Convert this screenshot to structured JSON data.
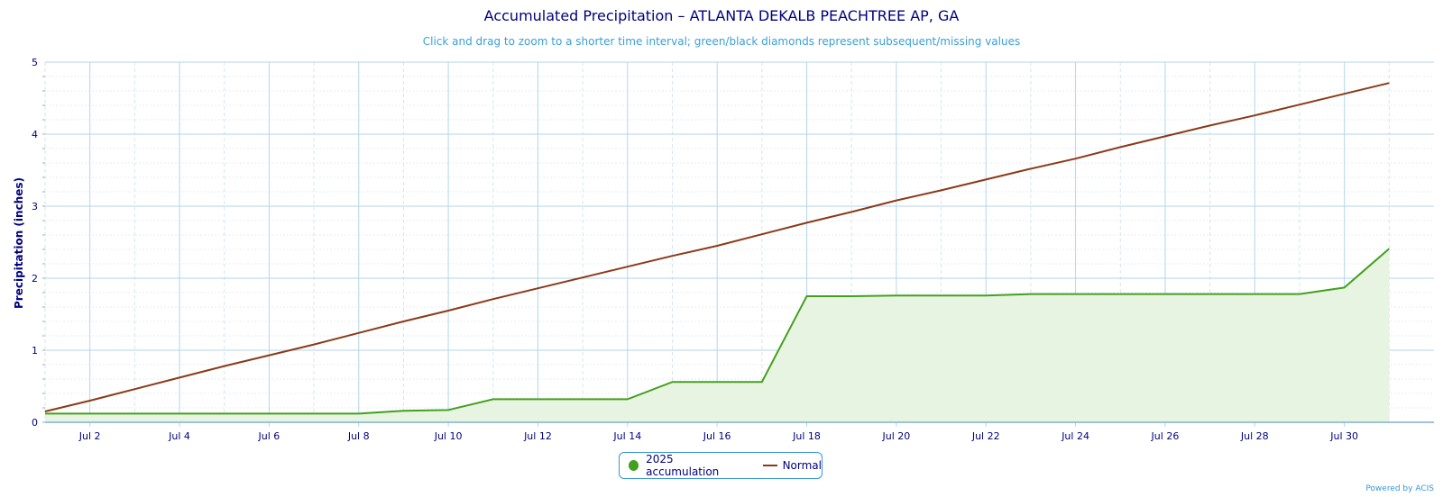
{
  "colors": {
    "title": "#000080",
    "subtitle": "#3a9fd6",
    "grid": "#b3d6ec",
    "minor_grid": "#e6eef4",
    "accumulation": "#43a01f",
    "accumulation_fill": "#e8f4e2",
    "normal": "#8b3a17",
    "axis_text": "#000080"
  },
  "chart_data": {
    "type": "area",
    "title": "Accumulated Precipitation – ATLANTA DEKALB PEACHTREE AP, GA",
    "subtitle": "Click and drag to zoom to a shorter time interval; green/black diamonds represent subsequent/missing values",
    "ylabel": "Precipitation (inches)",
    "xlabel": "",
    "ylim": [
      0,
      5
    ],
    "xlim": [
      1,
      32
    ],
    "y_ticks": [
      "0",
      "1",
      "2",
      "3",
      "4",
      "5"
    ],
    "x_ticks": [
      {
        "day": 2,
        "label": "Jul 2"
      },
      {
        "day": 4,
        "label": "Jul 4"
      },
      {
        "day": 6,
        "label": "Jul 6"
      },
      {
        "day": 8,
        "label": "Jul 8"
      },
      {
        "day": 10,
        "label": "Jul 10"
      },
      {
        "day": 12,
        "label": "Jul 12"
      },
      {
        "day": 14,
        "label": "Jul 14"
      },
      {
        "day": 16,
        "label": "Jul 16"
      },
      {
        "day": 18,
        "label": "Jul 18"
      },
      {
        "day": 20,
        "label": "Jul 20"
      },
      {
        "day": 22,
        "label": "Jul 22"
      },
      {
        "day": 24,
        "label": "Jul 24"
      },
      {
        "day": 26,
        "label": "Jul 26"
      },
      {
        "day": 28,
        "label": "Jul 28"
      },
      {
        "day": 30,
        "label": "Jul 30"
      }
    ],
    "grid": true,
    "legend_position": "bottom-center",
    "series": [
      {
        "name": "2025 accumulation",
        "kind": "area",
        "points": [
          [
            1,
            0.12
          ],
          [
            2,
            0.12
          ],
          [
            3,
            0.12
          ],
          [
            4,
            0.12
          ],
          [
            5,
            0.12
          ],
          [
            6,
            0.12
          ],
          [
            7,
            0.12
          ],
          [
            8,
            0.12
          ],
          [
            9,
            0.16
          ],
          [
            10,
            0.17
          ],
          [
            11,
            0.32
          ],
          [
            12,
            0.32
          ],
          [
            13,
            0.32
          ],
          [
            14,
            0.32
          ],
          [
            15,
            0.56
          ],
          [
            16,
            0.56
          ],
          [
            17,
            0.56
          ],
          [
            18,
            1.75
          ],
          [
            19,
            1.75
          ],
          [
            20,
            1.76
          ],
          [
            21,
            1.76
          ],
          [
            22,
            1.76
          ],
          [
            23,
            1.78
          ],
          [
            24,
            1.78
          ],
          [
            25,
            1.78
          ],
          [
            26,
            1.78
          ],
          [
            27,
            1.78
          ],
          [
            28,
            1.78
          ],
          [
            29,
            1.78
          ],
          [
            30,
            1.87
          ],
          [
            31,
            2.41
          ]
        ]
      },
      {
        "name": "Normal",
        "kind": "line",
        "points": [
          [
            1,
            0.15
          ],
          [
            2,
            0.3
          ],
          [
            3,
            0.46
          ],
          [
            4,
            0.62
          ],
          [
            5,
            0.78
          ],
          [
            6,
            0.93
          ],
          [
            7,
            1.08
          ],
          [
            8,
            1.24
          ],
          [
            9,
            1.4
          ],
          [
            10,
            1.55
          ],
          [
            11,
            1.71
          ],
          [
            12,
            1.86
          ],
          [
            13,
            2.01
          ],
          [
            14,
            2.16
          ],
          [
            15,
            2.31
          ],
          [
            16,
            2.45
          ],
          [
            17,
            2.61
          ],
          [
            18,
            2.77
          ],
          [
            19,
            2.92
          ],
          [
            20,
            3.08
          ],
          [
            21,
            3.22
          ],
          [
            22,
            3.37
          ],
          [
            23,
            3.52
          ],
          [
            24,
            3.66
          ],
          [
            25,
            3.82
          ],
          [
            26,
            3.97
          ],
          [
            27,
            4.12
          ],
          [
            28,
            4.26
          ],
          [
            29,
            4.41
          ],
          [
            30,
            4.56
          ],
          [
            31,
            4.71
          ]
        ]
      }
    ]
  },
  "legend": {
    "accumulation_label": "2025 accumulation",
    "normal_label": "Normal"
  },
  "credit": "Powered by ACIS"
}
